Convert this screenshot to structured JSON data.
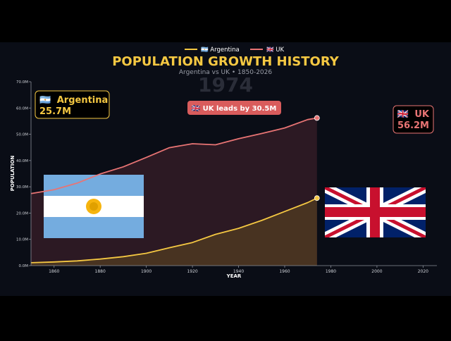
{
  "chart_data": {
    "type": "area",
    "title": "POPULATION GROWTH HISTORY",
    "subtitle": "Argentina vs UK • 1850-2026",
    "xlabel": "YEAR",
    "ylabel": "POPULATION",
    "current_year_label": "1974",
    "xlim": [
      1850,
      2026
    ],
    "ylim": [
      0,
      70
    ],
    "x_ticks": [
      1860,
      1880,
      1900,
      1920,
      1940,
      1960,
      1980,
      2000,
      2020
    ],
    "y_ticks": [
      {
        "v": 0,
        "label": "0.0M"
      },
      {
        "v": 10,
        "label": "10.0M"
      },
      {
        "v": 20,
        "label": "20.0M"
      },
      {
        "v": 30,
        "label": "30.0M"
      },
      {
        "v": 40,
        "label": "40.0M"
      },
      {
        "v": 50,
        "label": "50.0M"
      },
      {
        "v": 60,
        "label": "60.0M"
      },
      {
        "v": 70,
        "label": "70.0M"
      }
    ],
    "legend_position": "top-center",
    "grid": false,
    "x": [
      1850,
      1860,
      1870,
      1880,
      1890,
      1900,
      1910,
      1920,
      1930,
      1940,
      1950,
      1960,
      1970,
      1974
    ],
    "series": [
      {
        "name": "🇦🇷 Argentina",
        "color": "#f5c842",
        "fill": "#4a3522",
        "values": [
          1.1,
          1.4,
          1.8,
          2.5,
          3.4,
          4.7,
          6.8,
          8.8,
          11.9,
          14.2,
          17.2,
          20.6,
          24.0,
          25.7
        ]
      },
      {
        "name": "🇬🇧 UK",
        "color": "#e87474",
        "fill": "#2e1a24",
        "values": [
          27.4,
          28.9,
          31.4,
          34.9,
          37.6,
          41.2,
          44.9,
          46.4,
          46.0,
          48.3,
          50.3,
          52.4,
          55.6,
          56.2
        ]
      }
    ]
  },
  "annotations": {
    "left_box": {
      "flag": "🇦🇷",
      "country": "Argentina",
      "value": "25.7M",
      "color": "#f5c842"
    },
    "right_box": {
      "flag": "🇬🇧",
      "country": "UK",
      "value": "56.2M",
      "color": "#e87474"
    },
    "lead_badge": {
      "text": "🇬🇧 UK leads by 30.5M",
      "color": "#d95c5c"
    }
  },
  "colors": {
    "background": "#0a0d16",
    "letterbox": "#000000",
    "title": "#f5c842",
    "axis": "#8a8f9a"
  }
}
